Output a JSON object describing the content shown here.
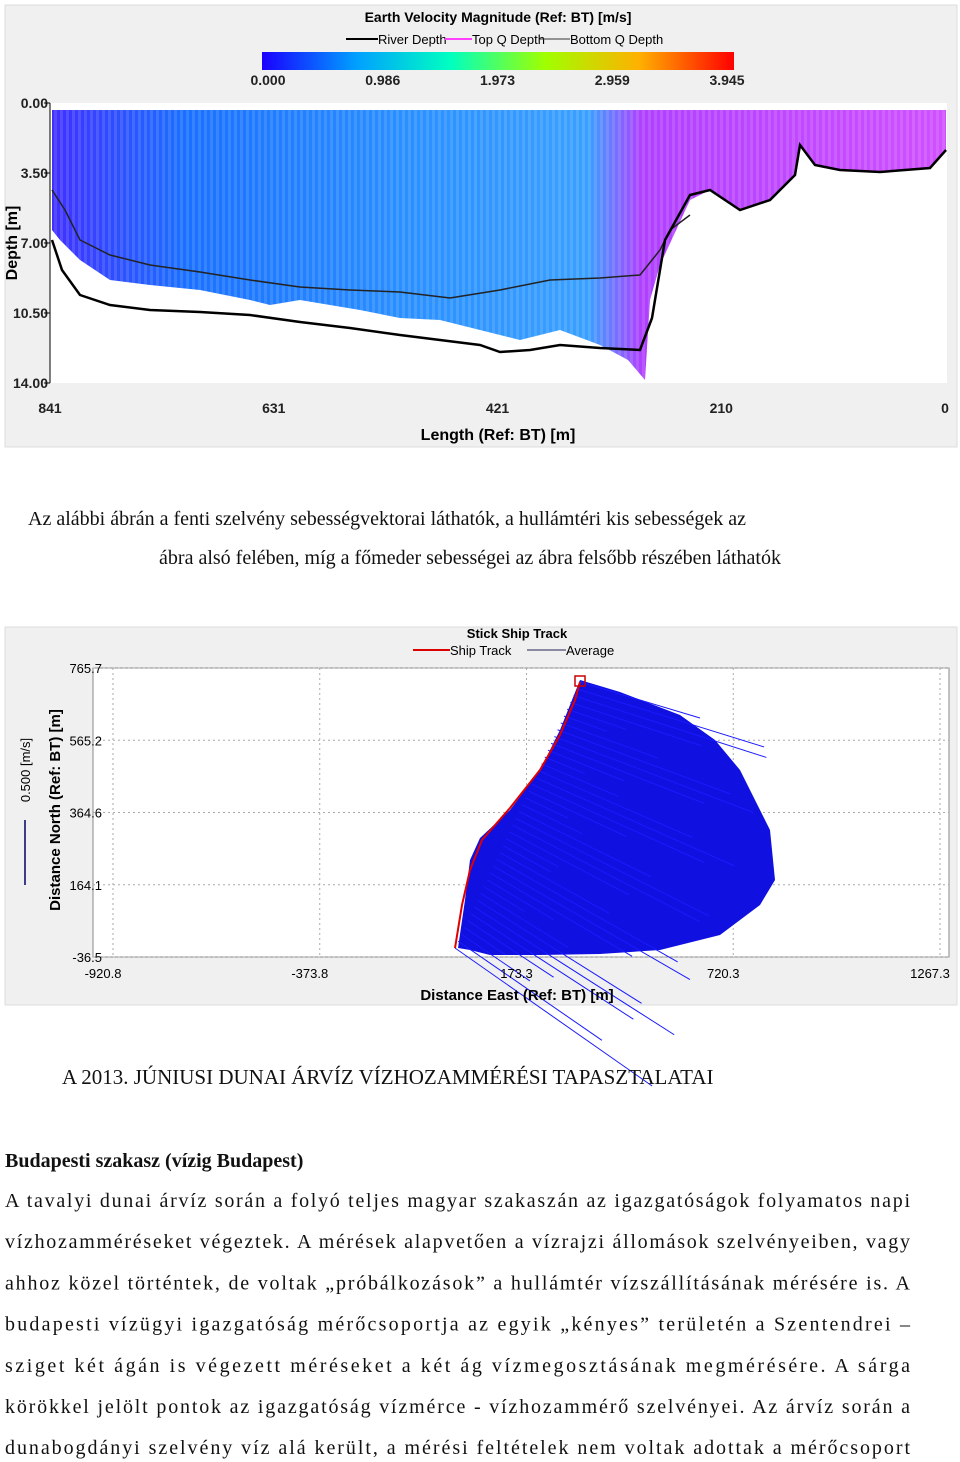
{
  "figure1": {
    "title": "Earth Velocity Magnitude (Ref: BT) [m/s]",
    "legend": [
      "River Depth",
      "Top Q Depth",
      "Bottom Q Depth"
    ],
    "colorbar_ticks": [
      "0.000",
      "0.986",
      "1.973",
      "2.959",
      "3.945"
    ],
    "y_label": "Depth [m]",
    "y_ticks": [
      "0.00",
      "3.50",
      "7.00",
      "10.50",
      "14.00"
    ],
    "x_label": "Length (Ref: BT) [m]",
    "x_ticks": [
      "841",
      "631",
      "421",
      "210",
      "0"
    ]
  },
  "caption": [
    "Az alábbi ábrán a fenti szelvény sebességvektorai láthatók, a hullámtéri kis sebességek az",
    "ábra alsó felében, míg a főmeder sebességei az ábra felsőbb részében láthatók"
  ],
  "figure2": {
    "title": "Stick Ship Track",
    "legend": [
      "Ship Track",
      "Average"
    ],
    "scale_label": "0.500 [m/s]",
    "y_label": "Distance North (Ref: BT) [m]",
    "y_ticks": [
      "765.7",
      "565.2",
      "364.6",
      "164.1",
      "-36.5"
    ],
    "x_label": "Distance East (Ref: BT) [m]",
    "x_ticks": [
      "-920.8",
      "-373.8",
      "173.3",
      "720.3",
      "1267.3"
    ]
  },
  "heading": "A 2013. JÚNIUSI DUNAI ÁRVÍZ VÍZHOZAMMÉRÉSI TAPASZTALATAI",
  "subheading": "Budapesti szakasz (vízig Budapest)",
  "body_lines": [
    "A tavalyi dunai árvíz során a folyó teljes magyar szakaszán az igazgatóságok folyamatos napi",
    "vízhozamméréseket végeztek. A mérések alapvetően a vízrajzi állomások szelvényeiben, vagy",
    "ahhoz közel történtek, de voltak „próbálkozások” a hullámtér vízszállításának mérésére is. A",
    "budapesti vízügyi igazgatóság mérőcsoportja az egyik „kényes” területén a Szentendrei –",
    "sziget két ágán is végezett méréseket a két ág vízmegosztásának megmérésére.  A sárga",
    "körökkel jelölt pontok az igazgatóság vízmérce - vízhozammérő szelvényei. Az árvíz során a",
    "dunabogdányi szelvény víz alá került, a mérési feltételek nem voltak adottak a mérőcsoport"
  ]
}
